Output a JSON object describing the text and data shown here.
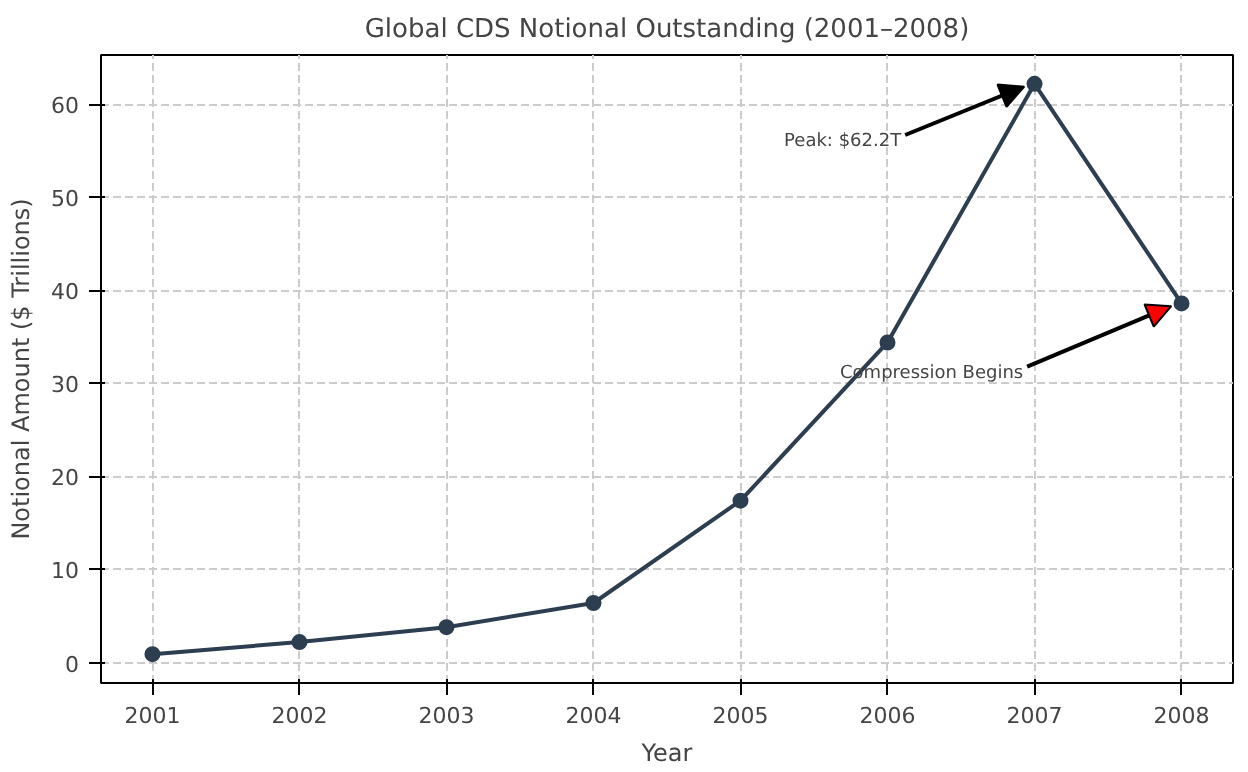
{
  "chart_data": {
    "type": "line",
    "title": "Global CDS Notional Outstanding (2001–2008)",
    "xlabel": "Year",
    "ylabel": "Notional Amount ($ Trillions)",
    "x": [
      2001,
      2002,
      2003,
      2004,
      2005,
      2006,
      2007,
      2008
    ],
    "series": [
      {
        "color": "#2c3e50",
        "values": [
          0.9,
          2.2,
          3.8,
          6.4,
          17.4,
          34.4,
          62.2,
          38.6
        ]
      }
    ],
    "xlim": [
      2000.65,
      2008.35
    ],
    "ylim": [
      -2.2,
      65.3
    ],
    "xticks": [
      2001,
      2002,
      2003,
      2004,
      2005,
      2006,
      2007,
      2008
    ],
    "yticks": [
      0,
      10,
      20,
      30,
      40,
      50,
      60
    ],
    "grid": true,
    "marker": "circle",
    "line_style": "solid",
    "annotations": [
      {
        "text": "Peak: $62.2T",
        "x": 2007,
        "y": 62.2
      },
      {
        "text": "Compression Begins",
        "x": 2008,
        "y": 38.6
      }
    ]
  }
}
